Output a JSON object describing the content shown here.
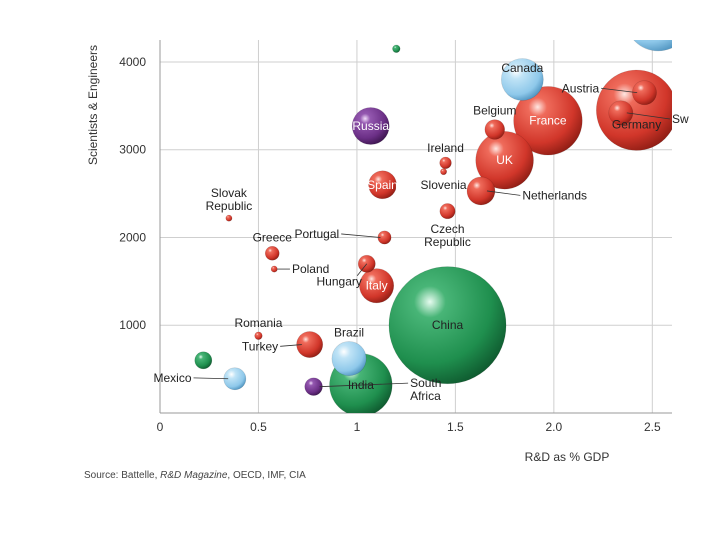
{
  "colors": {
    "red": "#d63a2b",
    "green": "#1f8f4e",
    "blue": "#8ec8ea",
    "purple": "#6b2f86",
    "grid": "#cfcfcf",
    "axis": "#999999",
    "background": "#ffffff"
  },
  "source": {
    "prefix": "Source: Battelle, ",
    "magazine": "R&D Magazine",
    "suffix": ", OECD, IMF, CIA"
  },
  "chart_data": {
    "type": "scatter",
    "subtype": "bubble",
    "title": "",
    "xlabel": "R&D as % GDP",
    "ylabel": "Scientists & Engineers",
    "xlim": [
      0,
      2.6
    ],
    "ylim": [
      0,
      4250
    ],
    "xticks": [
      0,
      0.5,
      1,
      1.5,
      2,
      2.5
    ],
    "xtick_labels": [
      "0",
      "0.5",
      "1",
      "1.5",
      "2.0",
      "2.5"
    ],
    "yticks": [
      1000,
      2000,
      3000,
      4000
    ],
    "ytick_labels": [
      "1000",
      "2000",
      "3000",
      "4000"
    ],
    "grid": true,
    "size_note": "bubble size proportional to total R&D spending",
    "points": [
      {
        "name": "Slovak Republic",
        "lines": [
          "Slovak",
          "Republic"
        ],
        "x": 0.35,
        "y": 2220,
        "size": 0.2,
        "color": "red",
        "label_pos": "above"
      },
      {
        "name": "Greece",
        "lines": [
          "Greece"
        ],
        "x": 0.57,
        "y": 1820,
        "size": 1,
        "color": "red",
        "label_pos": "above"
      },
      {
        "name": "Poland",
        "lines": [
          "Poland"
        ],
        "x": 0.58,
        "y": 1640,
        "size": 0.2,
        "color": "red",
        "label_pos": "right-leader",
        "label_x": 0.67,
        "label_y": 1640
      },
      {
        "name": "Portugal",
        "lines": [
          "Portugal"
        ],
        "x": 1.14,
        "y": 2000,
        "size": 0.9,
        "color": "red",
        "label_pos": "left-leader",
        "label_x": 0.91,
        "label_y": 2040
      },
      {
        "name": "Hungary",
        "lines": [
          "Hungary"
        ],
        "x": 1.05,
        "y": 1700,
        "size": 1.5,
        "color": "red",
        "label_pos": "below-left",
        "label_x": 0.91,
        "label_y": 1450
      },
      {
        "name": "Italy",
        "lines": [
          "Italy"
        ],
        "x": 1.1,
        "y": 1450,
        "size": 6,
        "color": "red",
        "label_pos": "center-white"
      },
      {
        "name": "Spain",
        "lines": [
          "Spain"
        ],
        "x": 1.13,
        "y": 2600,
        "size": 4,
        "color": "red",
        "label_pos": "center-white"
      },
      {
        "name": "Russia",
        "lines": [
          "Russia"
        ],
        "x": 1.07,
        "y": 3270,
        "size": 7,
        "color": "purple",
        "label_pos": "center-white"
      },
      {
        "name": "Ireland",
        "lines": [
          "Ireland"
        ],
        "x": 1.45,
        "y": 2850,
        "size": 0.7,
        "color": "red",
        "label_pos": "above"
      },
      {
        "name": "Slovenia",
        "lines": [
          "Slovenia"
        ],
        "x": 1.44,
        "y": 2750,
        "size": 0.2,
        "color": "red",
        "label_pos": "below"
      },
      {
        "name": "Czech Republic",
        "lines": [
          "Czech",
          "Republic"
        ],
        "x": 1.46,
        "y": 2300,
        "size": 1.2,
        "color": "red",
        "label_pos": "below"
      },
      {
        "name": "Romania",
        "lines": [
          "Romania"
        ],
        "x": 0.5,
        "y": 880,
        "size": 0.3,
        "color": "red",
        "label_pos": "above"
      },
      {
        "name": "Turkey",
        "lines": [
          "Turkey"
        ],
        "x": 0.76,
        "y": 780,
        "size": 3.5,
        "color": "red",
        "label_pos": "left-leader",
        "label_x": 0.6,
        "label_y": 760
      },
      {
        "name": "Brazil",
        "lines": [
          "Brazil"
        ],
        "x": 0.96,
        "y": 620,
        "size": 6,
        "color": "blue",
        "label_pos": "above"
      },
      {
        "name": "Mexico",
        "lines": [
          "Mexico"
        ],
        "x": 0.38,
        "y": 390,
        "size": 2.5,
        "color": "blue",
        "label_pos": "left-leader",
        "label_x": 0.16,
        "label_y": 400
      },
      {
        "name": "Mexico (2)",
        "lines": [],
        "x": 0.22,
        "y": 600,
        "size": 1.5,
        "color": "green",
        "label_pos": "none"
      },
      {
        "name": "South Africa",
        "lines": [
          "South",
          "Africa"
        ],
        "x": 0.78,
        "y": 300,
        "size": 1.6,
        "color": "purple",
        "label_pos": "right-leader",
        "label_x": 1.27,
        "label_y": 340
      },
      {
        "name": "India",
        "lines": [
          "India"
        ],
        "x": 1.02,
        "y": 320,
        "size": 20,
        "color": "green",
        "label_pos": "center-dark"
      },
      {
        "name": "China",
        "lines": [
          "China"
        ],
        "x": 1.46,
        "y": 1000,
        "size": 70,
        "color": "green",
        "label_pos": "center-dark"
      },
      {
        "name": "Canada",
        "lines": [
          "Canada"
        ],
        "x": 1.84,
        "y": 3800,
        "size": 9,
        "color": "blue",
        "label_pos": "inside-top-dark"
      },
      {
        "name": "Belgium",
        "lines": [
          "Belgium"
        ],
        "x": 1.7,
        "y": 3230,
        "size": 2,
        "color": "red",
        "label_pos": "above"
      },
      {
        "name": "France",
        "lines": [
          "France"
        ],
        "x": 1.97,
        "y": 3330,
        "size": 24,
        "color": "red",
        "label_pos": "center-white"
      },
      {
        "name": "UK",
        "lines": [
          "UK"
        ],
        "x": 1.75,
        "y": 2880,
        "size": 17,
        "color": "red",
        "label_pos": "center-white"
      },
      {
        "name": "Netherlands",
        "lines": [
          "Netherlands"
        ],
        "x": 1.63,
        "y": 2530,
        "size": 4,
        "color": "red",
        "label_pos": "right-leader",
        "label_x": 1.84,
        "label_y": 2480
      },
      {
        "name": "Austria",
        "lines": [
          "Austria"
        ],
        "x": 2.46,
        "y": 3650,
        "size": 3,
        "color": "red",
        "label_pos": "left-leader",
        "label_x": 2.23,
        "label_y": 3700
      },
      {
        "name": "Germany",
        "lines": [
          "Germany"
        ],
        "x": 2.42,
        "y": 3450,
        "size": 33,
        "color": "red",
        "label_pos": "below-inside"
      },
      {
        "name": "Sw",
        "lines": [
          "Sw"
        ],
        "x": 2.34,
        "y": 3420,
        "size": 3,
        "color": "red",
        "label_pos": "right-leader",
        "label_x": 2.6,
        "label_y": 3350
      },
      {
        "name": "Sw (top, cut off)",
        "lines": [],
        "x": 2.53,
        "y": 4500,
        "size": 22,
        "color": "blue",
        "label_pos": "none"
      },
      {
        "name": "Top small (cut off)",
        "lines": [],
        "x": 1.2,
        "y": 4150,
        "size": 0.3,
        "color": "green",
        "label_pos": "none"
      }
    ]
  }
}
